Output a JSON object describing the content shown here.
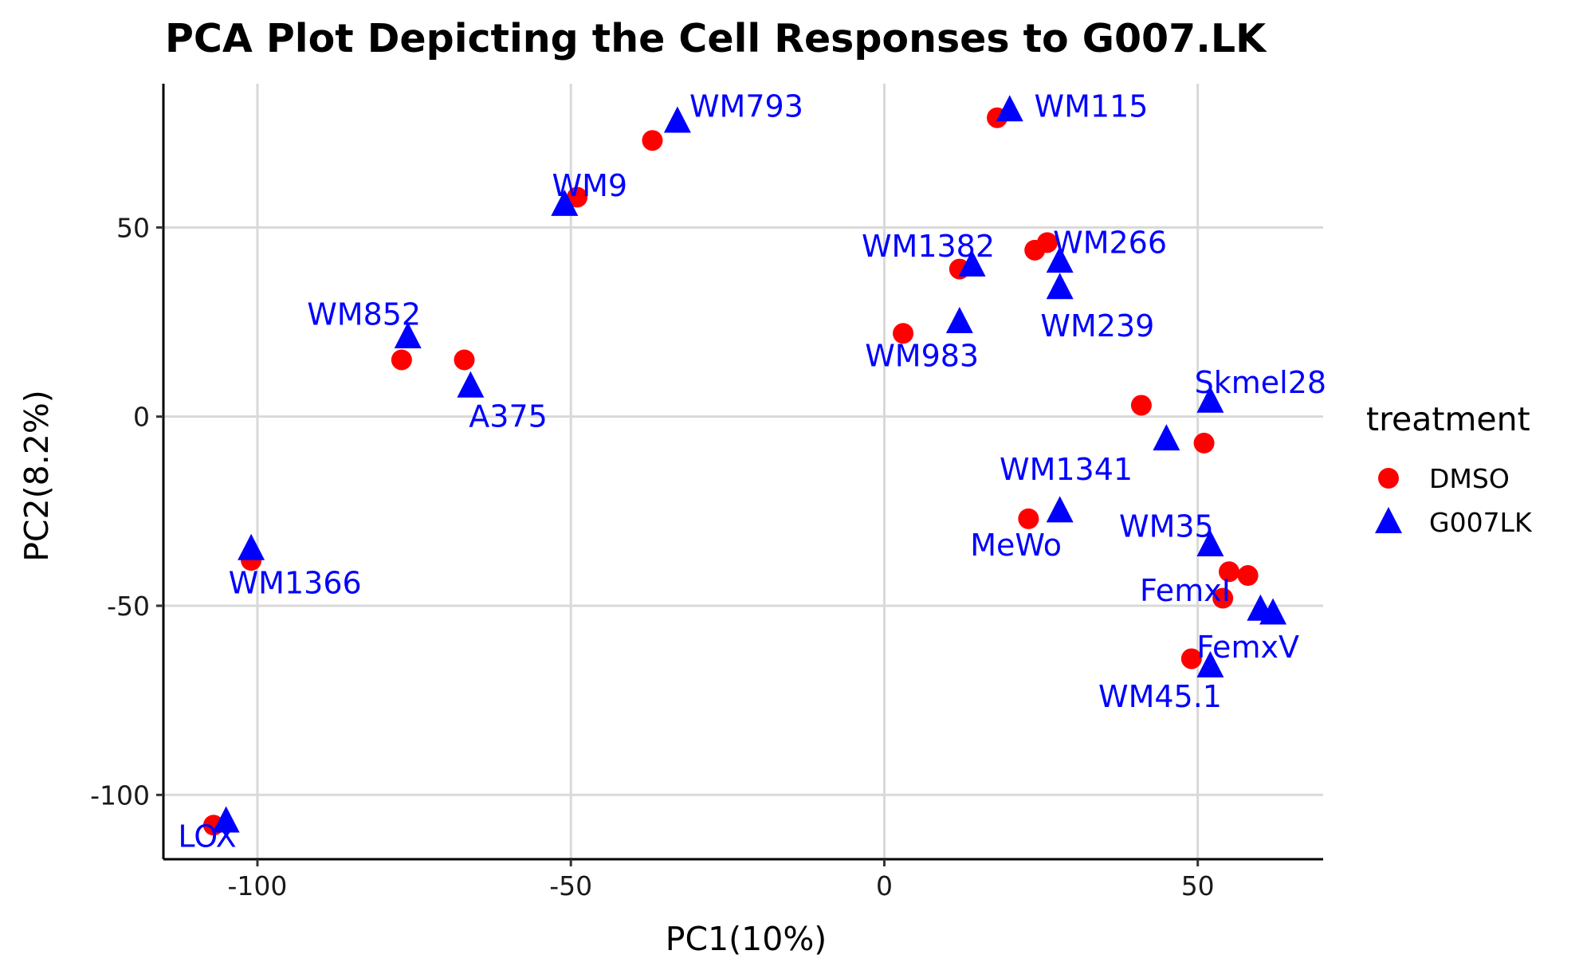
{
  "chart_data": {
    "type": "scatter",
    "title": "PCA Plot Depicting the Cell Responses to G007.LK",
    "xlabel": "PC1(10%)",
    "ylabel": "PC2(8.2%)",
    "xlim": [
      -115,
      70
    ],
    "ylim": [
      -117,
      88
    ],
    "x_ticks": [
      -100,
      -50,
      0,
      50
    ],
    "y_ticks": [
      -100,
      -50,
      0,
      50
    ],
    "x_tick_labels": [
      "-100",
      "-50",
      "0",
      "50"
    ],
    "y_tick_labels": [
      "-100",
      "-50",
      "0",
      "50"
    ],
    "grid": true,
    "legend": {
      "title": "treatment",
      "placement": "right",
      "entries": [
        {
          "label": "DMSO",
          "shape": "circle"
        },
        {
          "label": "G007LK",
          "shape": "triangle"
        }
      ]
    },
    "colors": {
      "DMSO": "#ff0000",
      "G007LK": "#0000ff",
      "label_text": "#0000ff"
    },
    "series": [
      {
        "name": "DMSO",
        "points": [
          {
            "x": -107,
            "y": -108
          },
          {
            "x": -101,
            "y": -38
          },
          {
            "x": -77,
            "y": 15
          },
          {
            "x": -67,
            "y": 15
          },
          {
            "x": -49,
            "y": 58
          },
          {
            "x": -37,
            "y": 73
          },
          {
            "x": 3,
            "y": 22
          },
          {
            "x": 12,
            "y": 39
          },
          {
            "x": 18,
            "y": 79
          },
          {
            "x": 24,
            "y": 44
          },
          {
            "x": 26,
            "y": 46
          },
          {
            "x": 23,
            "y": -27
          },
          {
            "x": 41,
            "y": 3
          },
          {
            "x": 51,
            "y": -7
          },
          {
            "x": 55,
            "y": -41
          },
          {
            "x": 58,
            "y": -42
          },
          {
            "x": 54,
            "y": -48
          },
          {
            "x": 49,
            "y": -64
          }
        ]
      },
      {
        "name": "G007LK",
        "points": [
          {
            "x": -105,
            "y": -107
          },
          {
            "x": -101,
            "y": -35
          },
          {
            "x": -76,
            "y": 21
          },
          {
            "x": -66,
            "y": 8
          },
          {
            "x": -51,
            "y": 56
          },
          {
            "x": -33,
            "y": 78
          },
          {
            "x": 12,
            "y": 25
          },
          {
            "x": 14,
            "y": 40
          },
          {
            "x": 20,
            "y": 81
          },
          {
            "x": 28,
            "y": 41
          },
          {
            "x": 28,
            "y": 34
          },
          {
            "x": 28,
            "y": -25
          },
          {
            "x": 45,
            "y": -6
          },
          {
            "x": 52,
            "y": 4
          },
          {
            "x": 52,
            "y": -34
          },
          {
            "x": 60,
            "y": -51
          },
          {
            "x": 62,
            "y": -52
          },
          {
            "x": 52,
            "y": -66
          }
        ]
      }
    ],
    "labels": [
      {
        "text": "LOX",
        "x": -108,
        "y": -111
      },
      {
        "text": "WM1366",
        "x": -94,
        "y": -44
      },
      {
        "text": "WM852",
        "x": -83,
        "y": 27
      },
      {
        "text": "A375",
        "x": -60,
        "y": 0
      },
      {
        "text": "WM9",
        "x": -47,
        "y": 61
      },
      {
        "text": "WM793",
        "x": -22,
        "y": 82
      },
      {
        "text": "WM983",
        "x": 6,
        "y": 16
      },
      {
        "text": "WM1382",
        "x": 7,
        "y": 45
      },
      {
        "text": "WM115",
        "x": 33,
        "y": 82
      },
      {
        "text": "WM266",
        "x": 36,
        "y": 46
      },
      {
        "text": "WM239",
        "x": 34,
        "y": 24
      },
      {
        "text": "Skmel28",
        "x": 60,
        "y": 9
      },
      {
        "text": "WM1341",
        "x": 29,
        "y": -14
      },
      {
        "text": "MeWo",
        "x": 21,
        "y": -34
      },
      {
        "text": "WM35",
        "x": 45,
        "y": -29
      },
      {
        "text": "FemxI",
        "x": 48,
        "y": -46
      },
      {
        "text": "FemxV",
        "x": 58,
        "y": -61
      },
      {
        "text": "WM45.1",
        "x": 44,
        "y": -74
      }
    ]
  }
}
